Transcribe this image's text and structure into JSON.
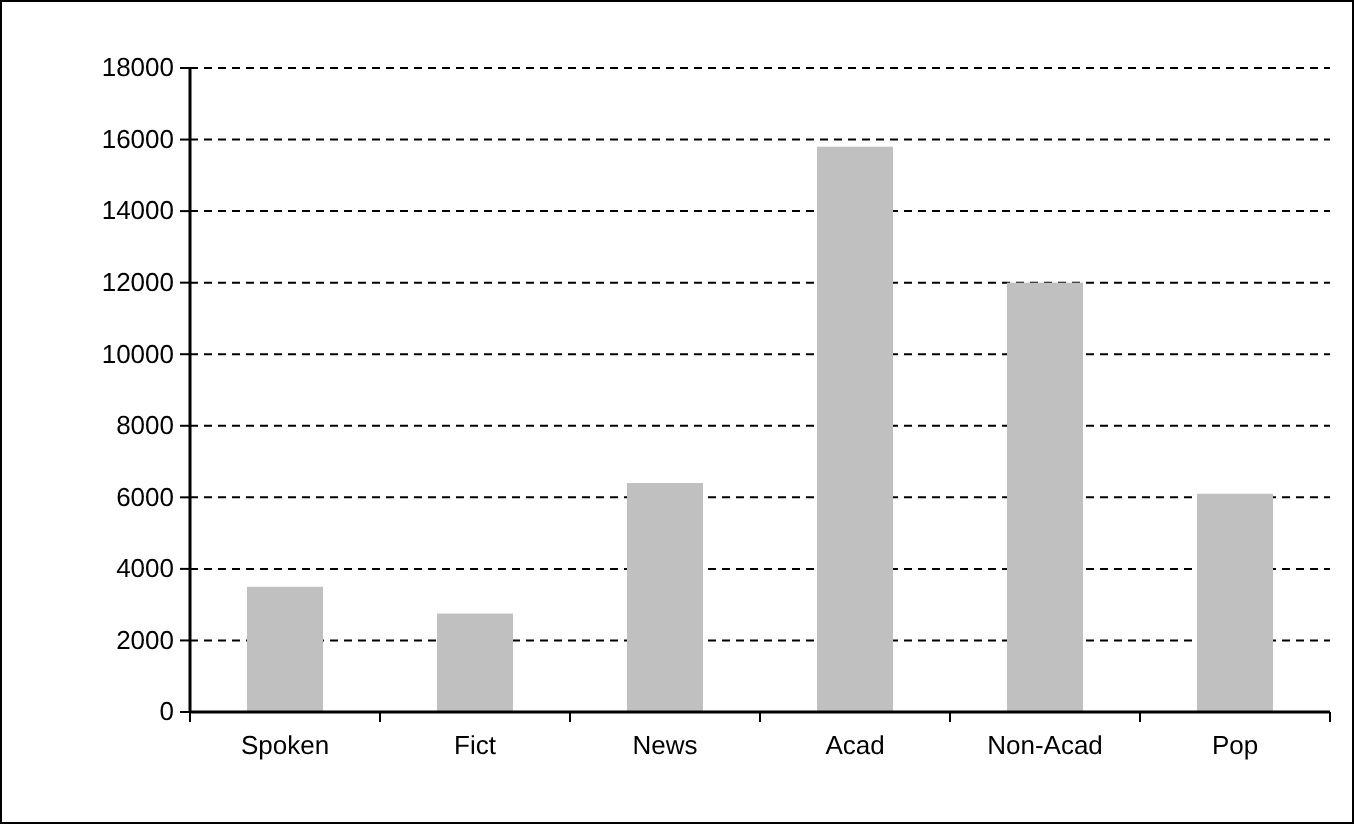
{
  "chart_data": {
    "type": "bar",
    "categories": [
      "Spoken",
      "Fict",
      "News",
      "Acad",
      "Non-Acad",
      "Pop"
    ],
    "values": [
      3500,
      2750,
      6400,
      15800,
      12000,
      6100
    ],
    "color": "#c0c0c0",
    "ylim": [
      0,
      18000
    ],
    "yticks": [
      0,
      2000,
      4000,
      6000,
      8000,
      10000,
      12000,
      14000,
      16000,
      18000
    ],
    "grid": "y",
    "line_style": "dashed"
  }
}
